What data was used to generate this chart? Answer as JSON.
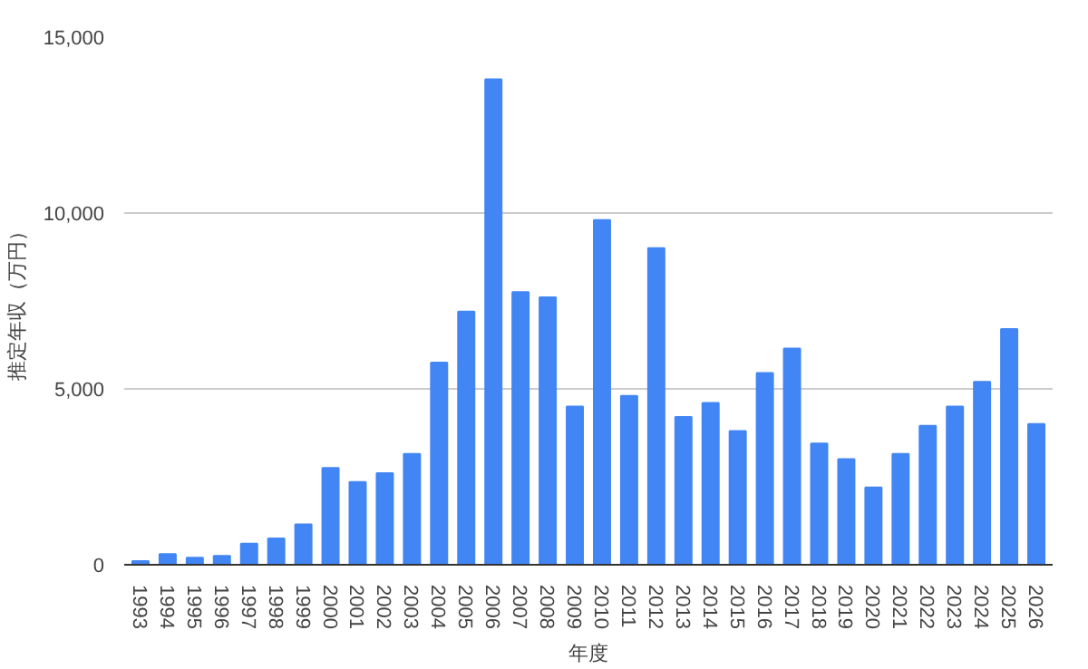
{
  "chart_data": {
    "type": "bar",
    "xlabel": "年度",
    "ylabel": "推定年収（万円）",
    "categories": [
      "1993",
      "1994",
      "1995",
      "1996",
      "1997",
      "1998",
      "1999",
      "2000",
      "2001",
      "2002",
      "2003",
      "2004",
      "2005",
      "2006",
      "2007",
      "2008",
      "2009",
      "2010",
      "2011",
      "2012",
      "2013",
      "2014",
      "2015",
      "2016",
      "2017",
      "2018",
      "2019",
      "2020",
      "2021",
      "2022",
      "2023",
      "2024",
      "2025",
      "2026"
    ],
    "values": [
      100,
      300,
      200,
      250,
      600,
      750,
      1150,
      2750,
      2350,
      2600,
      3150,
      5750,
      7200,
      13800,
      7750,
      7600,
      4500,
      9800,
      4800,
      9000,
      4200,
      4600,
      3800,
      5450,
      6150,
      3450,
      3000,
      2200,
      3150,
      3950,
      4500,
      5200,
      6700,
      4000
    ],
    "color": "#4285f4",
    "ylim": [
      0,
      15000
    ],
    "yticks": [
      0,
      {
        "value": 5000,
        "label": "5,000"
      },
      {
        "value": 10000,
        "label": "10,000"
      },
      {
        "value": 15000,
        "label": "15,000"
      }
    ],
    "grid": "y"
  }
}
